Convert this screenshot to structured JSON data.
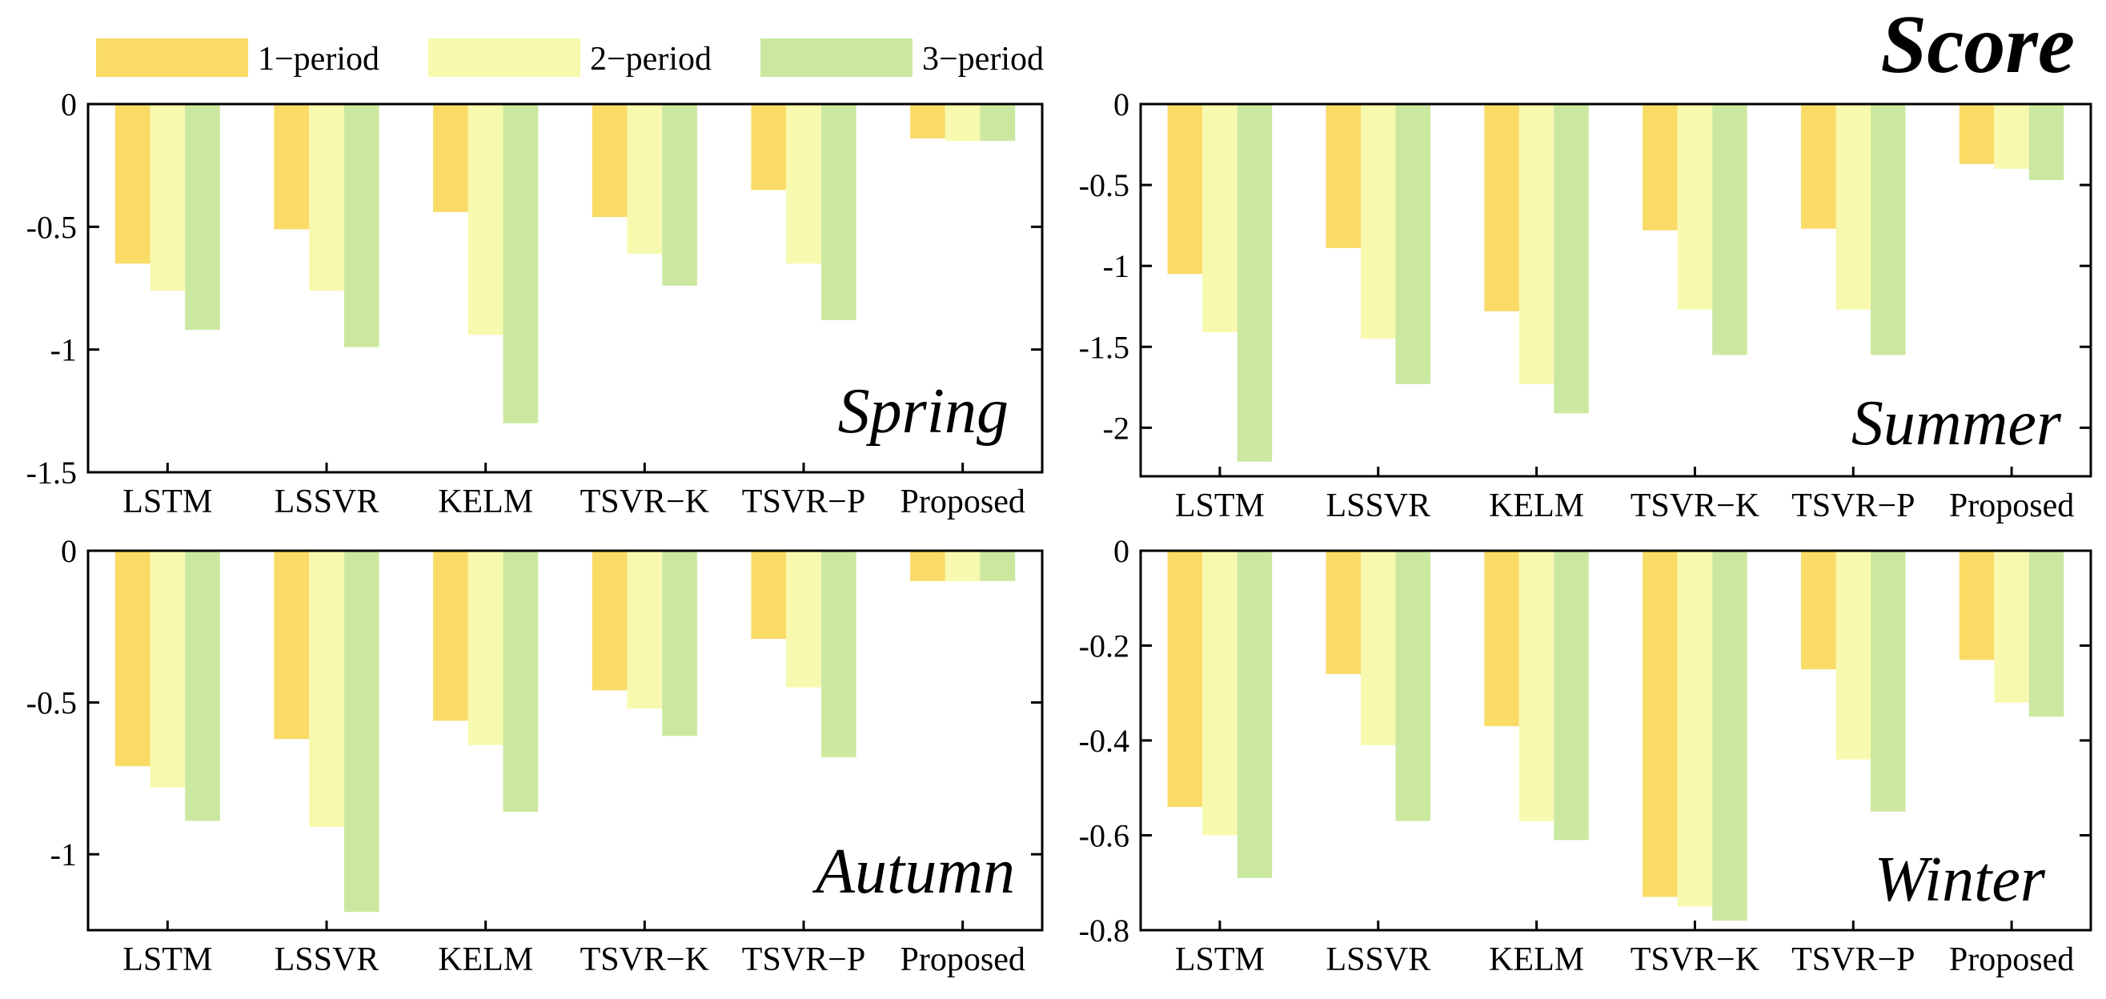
{
  "title": "Score",
  "colors": {
    "series1": "#FADB66",
    "series2": "#F7F9AE",
    "series3": "#CBE8A0"
  },
  "legend": [
    "1−period",
    "2−period",
    "3−period"
  ],
  "chart_data": [
    {
      "type": "bar",
      "panel": "Spring",
      "title": "Spring",
      "categories": [
        "LSTM",
        "LSSVR",
        "KELM",
        "TSVR−K",
        "TSVR−P",
        "Proposed"
      ],
      "series": [
        {
          "name": "1−period",
          "values": [
            -0.65,
            -0.51,
            -0.44,
            -0.46,
            -0.35,
            -0.14
          ]
        },
        {
          "name": "2−period",
          "values": [
            -0.76,
            -0.76,
            -0.94,
            -0.61,
            -0.65,
            -0.15
          ]
        },
        {
          "name": "3−period",
          "values": [
            -0.92,
            -0.99,
            -1.3,
            -0.74,
            -0.88,
            -0.15
          ]
        }
      ],
      "ylim": [
        -1.5,
        0
      ],
      "yticks": [
        0,
        -0.5,
        -1,
        -1.5
      ],
      "ytick_labels": [
        "0",
        "-0.5",
        "-1",
        "-1.5"
      ]
    },
    {
      "type": "bar",
      "panel": "Summer",
      "title": "Summer",
      "categories": [
        "LSTM",
        "LSSVR",
        "KELM",
        "TSVR−K",
        "TSVR−P",
        "Proposed"
      ],
      "series": [
        {
          "name": "1−period",
          "values": [
            -1.05,
            -0.89,
            -1.28,
            -0.78,
            -0.77,
            -0.37
          ]
        },
        {
          "name": "2−period",
          "values": [
            -1.41,
            -1.45,
            -1.73,
            -1.27,
            -1.27,
            -0.4
          ]
        },
        {
          "name": "3−period",
          "values": [
            -2.21,
            -1.73,
            -1.91,
            -1.55,
            -1.55,
            -0.47
          ]
        }
      ],
      "ylim": [
        -2.3,
        0
      ],
      "yticks": [
        0,
        -0.5,
        -1,
        -1.5,
        -2
      ],
      "ytick_labels": [
        "0",
        "-0.5",
        "-1",
        "-1.5",
        "-2"
      ]
    },
    {
      "type": "bar",
      "panel": "Autumn",
      "title": "Autumn",
      "categories": [
        "LSTM",
        "LSSVR",
        "KELM",
        "TSVR−K",
        "TSVR−P",
        "Proposed"
      ],
      "series": [
        {
          "name": "1−period",
          "values": [
            -0.71,
            -0.62,
            -0.56,
            -0.46,
            -0.29,
            -0.1
          ]
        },
        {
          "name": "2−period",
          "values": [
            -0.78,
            -0.91,
            -0.64,
            -0.52,
            -0.45,
            -0.1
          ]
        },
        {
          "name": "3−period",
          "values": [
            -0.89,
            -1.19,
            -0.86,
            -0.61,
            -0.68,
            -0.1
          ]
        }
      ],
      "ylim": [
        -1.25,
        0
      ],
      "yticks": [
        0,
        -0.5,
        -1
      ],
      "ytick_labels": [
        "0",
        "-0.5",
        "-1"
      ]
    },
    {
      "type": "bar",
      "panel": "Winter",
      "title": "Winter",
      "categories": [
        "LSTM",
        "LSSVR",
        "KELM",
        "TSVR−K",
        "TSVR−P",
        "Proposed"
      ],
      "series": [
        {
          "name": "1−period",
          "values": [
            -0.54,
            -0.26,
            -0.37,
            -0.73,
            -0.25,
            -0.23
          ]
        },
        {
          "name": "2−period",
          "values": [
            -0.6,
            -0.41,
            -0.57,
            -0.75,
            -0.44,
            -0.32
          ]
        },
        {
          "name": "3−period",
          "values": [
            -0.69,
            -0.57,
            -0.61,
            -0.78,
            -0.55,
            -0.35
          ]
        }
      ],
      "ylim": [
        -0.8,
        0
      ],
      "yticks": [
        0,
        -0.2,
        -0.4,
        -0.6,
        -0.8
      ],
      "ytick_labels": [
        "0",
        "-0.2",
        "-0.4",
        "-0.6",
        "-0.8"
      ]
    }
  ]
}
